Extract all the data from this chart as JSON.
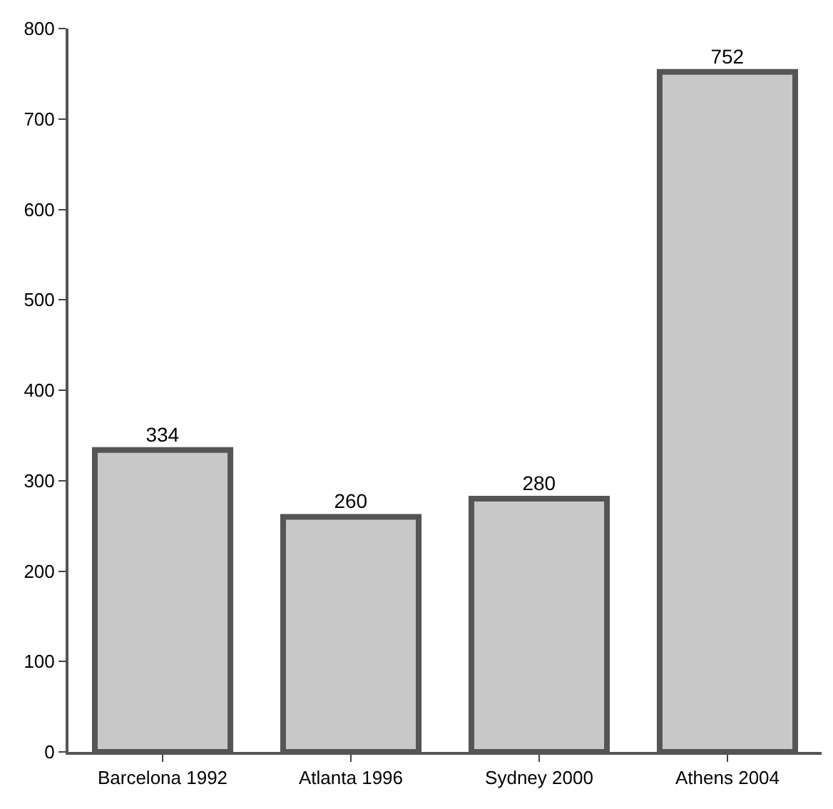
{
  "chart_data": {
    "type": "bar",
    "categories": [
      "Barcelona 1992",
      "Atlanta 1996",
      "Sydney 2000",
      "Athens 2004"
    ],
    "values": [
      334,
      260,
      280,
      752
    ],
    "color": "#c8c8c8",
    "ylim": [
      0,
      800
    ],
    "yticks": [
      0,
      100,
      200,
      300,
      400,
      500,
      600,
      700,
      800
    ],
    "data_labels": true,
    "grid": false
  }
}
